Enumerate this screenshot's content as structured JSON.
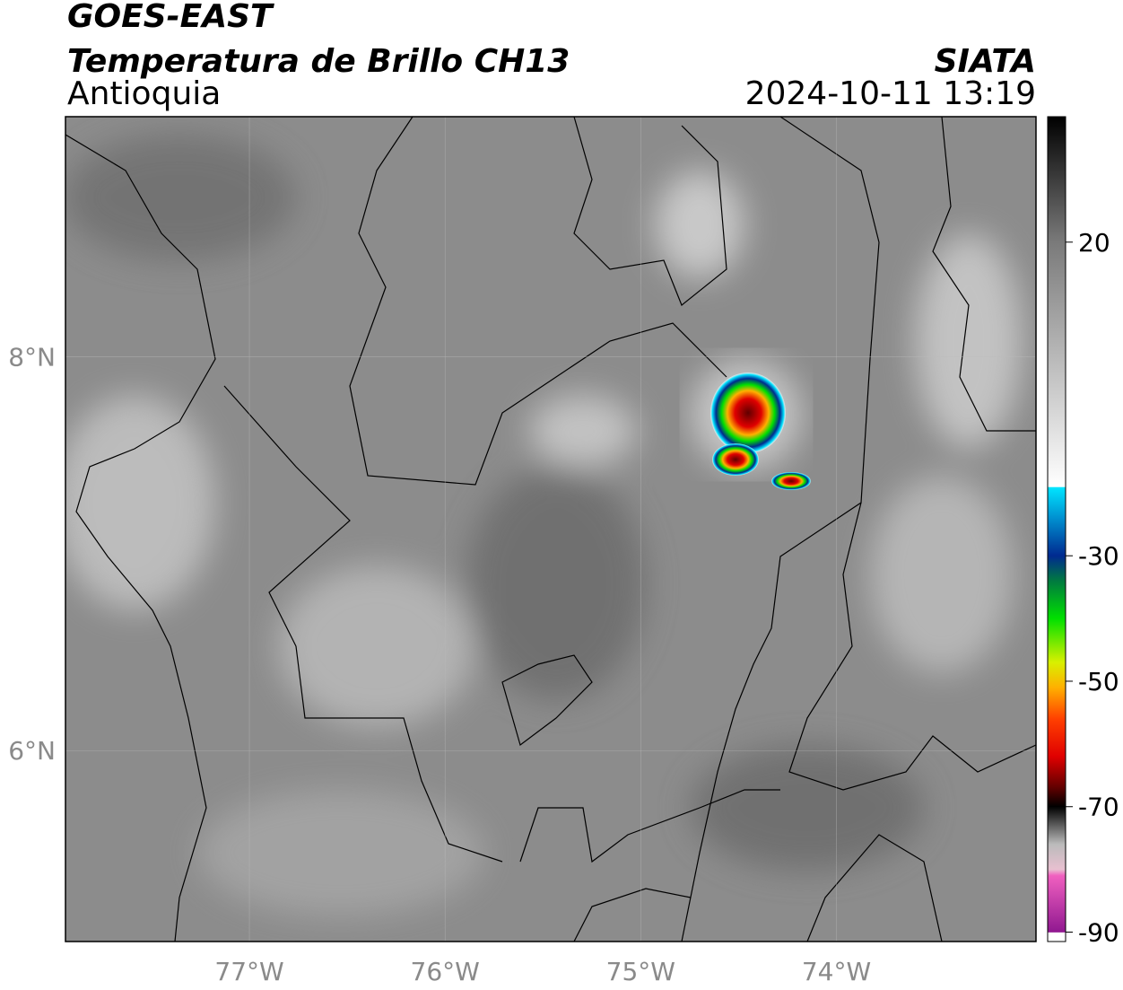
{
  "header": {
    "title": "GOES-EAST",
    "subtitle": "Temperatura de Brillo CH13",
    "region": "Antioquia",
    "source": "SIATA",
    "datetime": "2024-10-11 13:19"
  },
  "map": {
    "lonlim": [
      -77.94,
      -72.98
    ],
    "latlim": [
      5.03,
      9.22
    ],
    "lonticks": [
      {
        "value": -77,
        "label": "77°W"
      },
      {
        "value": -76,
        "label": "76°W"
      },
      {
        "value": -75,
        "label": "75°W"
      },
      {
        "value": -74,
        "label": "74°W"
      }
    ],
    "latticks": [
      {
        "value": 8,
        "label": "8°N"
      },
      {
        "value": 6,
        "label": "6°N"
      }
    ],
    "grid": true
  },
  "colorbar": {
    "lim": [
      -91.5,
      40
    ],
    "ticks": [
      20,
      -30,
      -50,
      -70,
      -90
    ],
    "stops": [
      [
        40,
        "#000000"
      ],
      [
        20,
        "#7a7a7a"
      ],
      [
        -19,
        "#ffffff"
      ],
      [
        -19.1,
        "#00e5ff"
      ],
      [
        -24,
        "#0090d0"
      ],
      [
        -30,
        "#002a90"
      ],
      [
        -34,
        "#007a40"
      ],
      [
        -40,
        "#00e000"
      ],
      [
        -47,
        "#d8f000"
      ],
      [
        -51,
        "#ffb000"
      ],
      [
        -56,
        "#ff4000"
      ],
      [
        -62,
        "#e00000"
      ],
      [
        -67,
        "#600000"
      ],
      [
        -70,
        "#000000"
      ],
      [
        -76,
        "#bbbbbb"
      ],
      [
        -80,
        "#e8c0d0"
      ],
      [
        -81,
        "#f060c0"
      ],
      [
        -90,
        "#901890"
      ],
      [
        -90.1,
        "#ffffff"
      ],
      [
        -91.5,
        "#ffffff"
      ]
    ]
  }
}
